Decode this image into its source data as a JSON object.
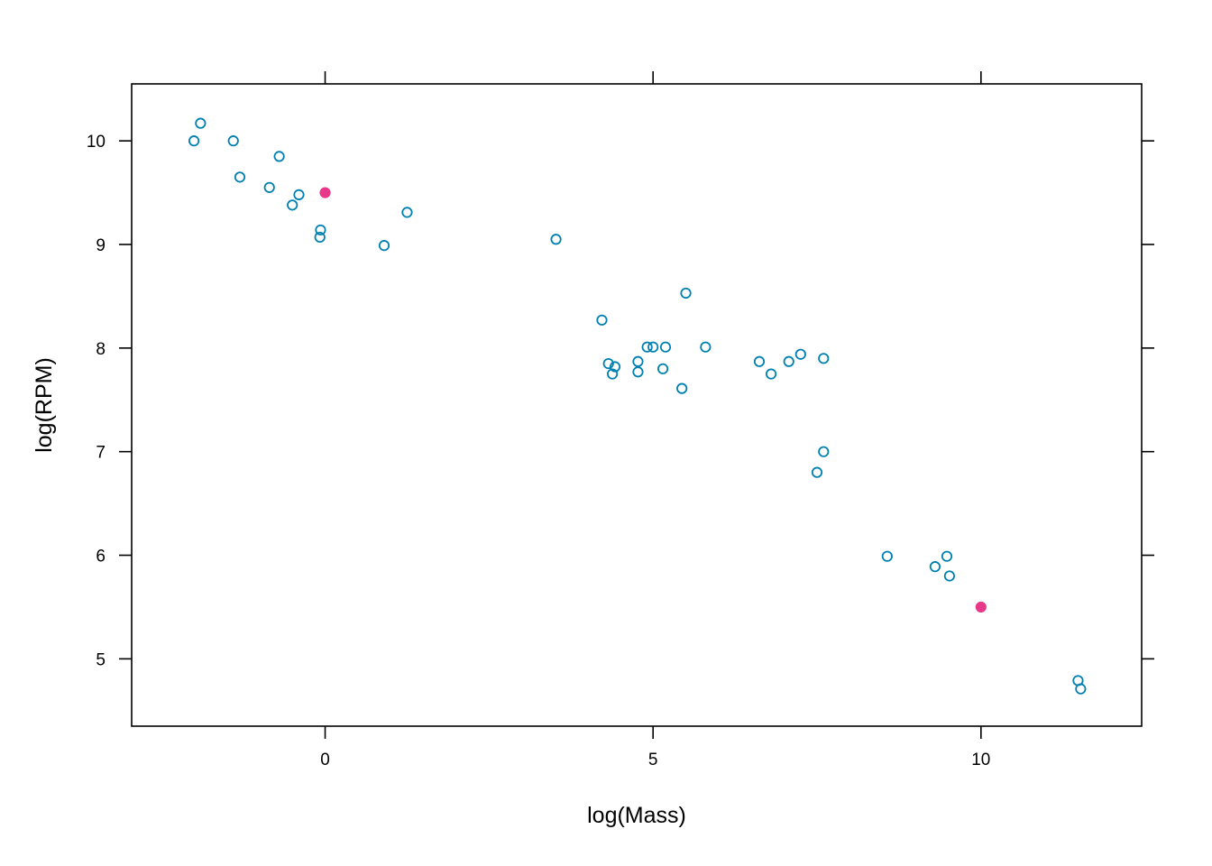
{
  "chart_data": {
    "type": "scatter",
    "title": "",
    "xlabel": "log(Mass)",
    "ylabel": "log(RPM)",
    "xlim": [
      -2.95,
      12.45
    ],
    "ylim": [
      4.35,
      10.55
    ],
    "x_ticks": [
      0,
      5,
      10
    ],
    "y_ticks": [
      5,
      6,
      7,
      8,
      9,
      10
    ],
    "grid": false,
    "legend": "none",
    "series": [
      {
        "marker": "open-circle",
        "color": "#0080b0",
        "points": [
          [
            -2.0,
            10.0
          ],
          [
            -1.9,
            10.17
          ],
          [
            -1.4,
            10.0
          ],
          [
            -1.3,
            9.65
          ],
          [
            -0.7,
            9.85
          ],
          [
            -0.85,
            9.55
          ],
          [
            -0.4,
            9.48
          ],
          [
            -0.5,
            9.38
          ],
          [
            -0.07,
            9.14
          ],
          [
            -0.08,
            9.07
          ],
          [
            0.9,
            8.99
          ],
          [
            1.25,
            9.31
          ],
          [
            3.52,
            9.05
          ],
          [
            4.22,
            8.27
          ],
          [
            4.32,
            7.85
          ],
          [
            4.38,
            7.75
          ],
          [
            4.42,
            7.82
          ],
          [
            4.77,
            7.87
          ],
          [
            4.77,
            7.77
          ],
          [
            4.91,
            8.01
          ],
          [
            5.0,
            8.01
          ],
          [
            5.19,
            8.01
          ],
          [
            5.15,
            7.8
          ],
          [
            5.44,
            7.61
          ],
          [
            5.5,
            8.53
          ],
          [
            5.8,
            8.01
          ],
          [
            6.62,
            7.87
          ],
          [
            6.8,
            7.75
          ],
          [
            7.07,
            7.87
          ],
          [
            7.25,
            7.94
          ],
          [
            7.6,
            7.9
          ],
          [
            7.5,
            6.8
          ],
          [
            7.6,
            7.0
          ],
          [
            8.57,
            5.99
          ],
          [
            9.3,
            5.89
          ],
          [
            9.48,
            5.99
          ],
          [
            9.52,
            5.8
          ],
          [
            11.48,
            4.79
          ],
          [
            11.52,
            4.71
          ]
        ]
      },
      {
        "marker": "filled-circle",
        "color": "#e8388a",
        "points": [
          [
            0.0,
            9.5
          ],
          [
            10.0,
            5.5
          ]
        ]
      }
    ]
  }
}
